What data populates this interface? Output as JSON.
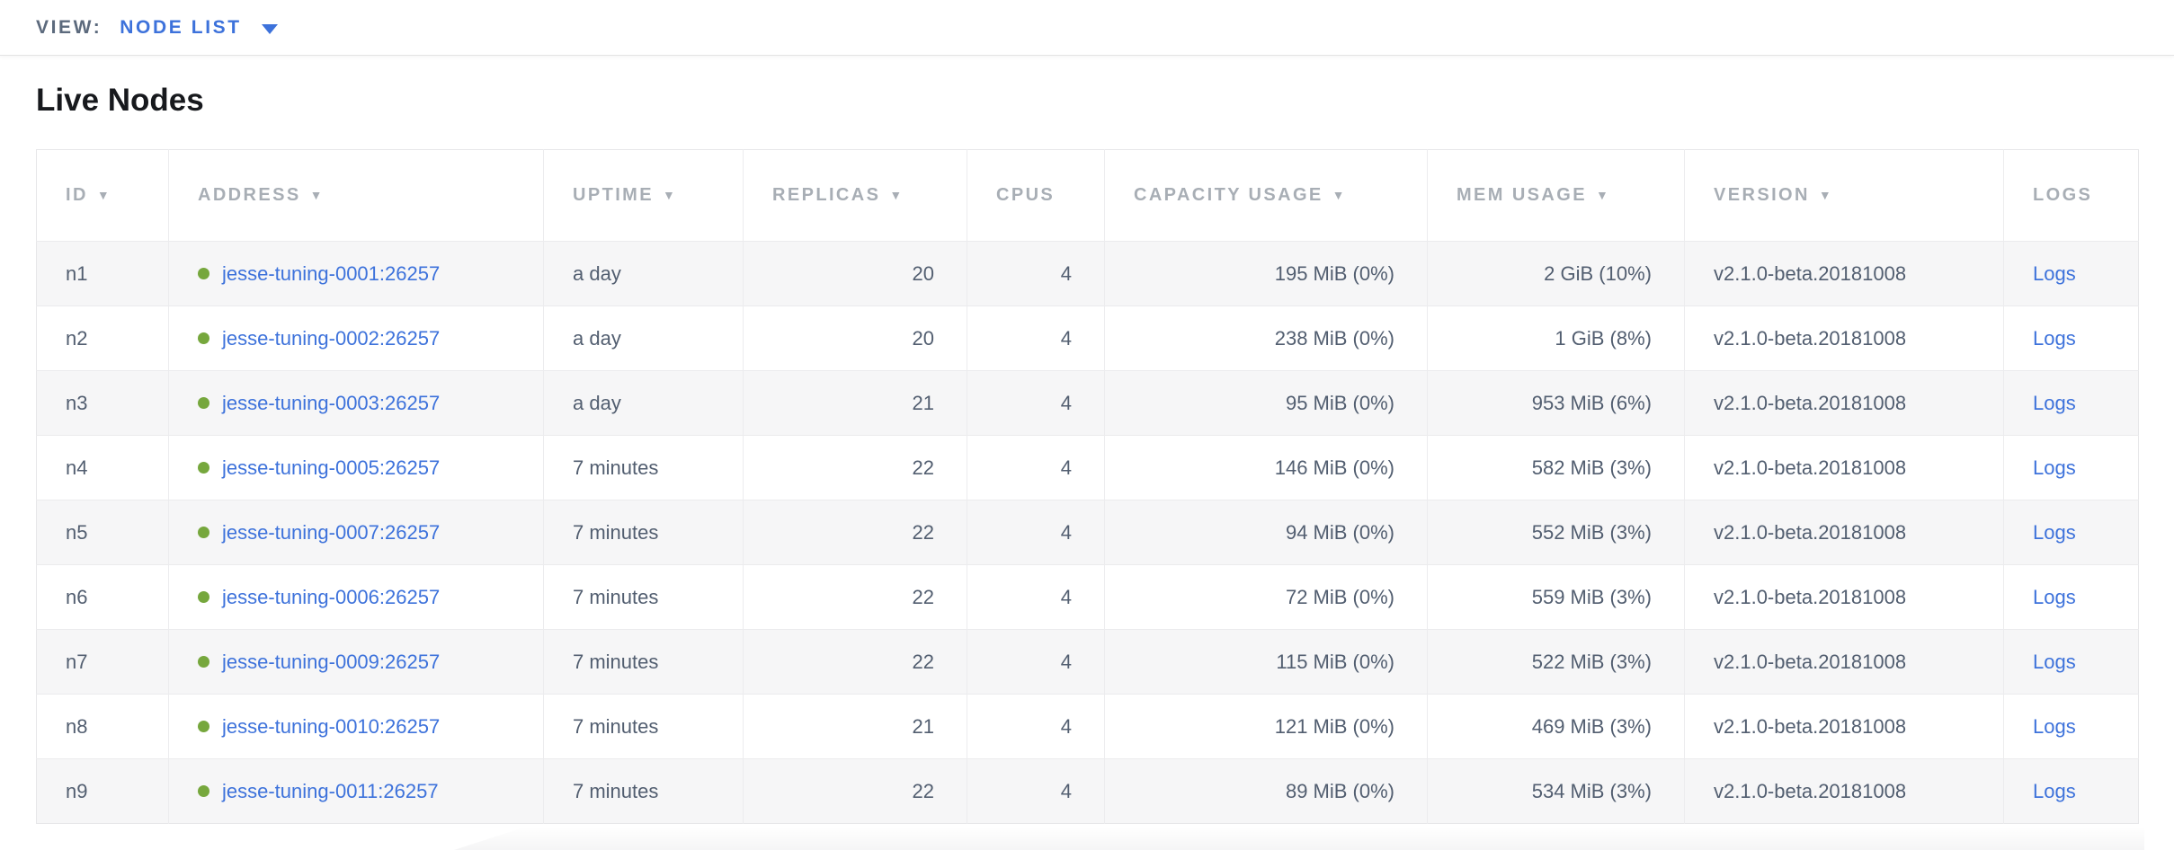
{
  "toolbar": {
    "view_label": "VIEW:",
    "view_value": "NODE LIST"
  },
  "page": {
    "title": "Live Nodes"
  },
  "colors": {
    "link": "#3d72db",
    "status_ok": "#76a73d",
    "header_text": "#a8aeb5",
    "body_text": "#525e70",
    "stripe": "#f6f6f7"
  },
  "table": {
    "sort_indicator": "▼",
    "columns": [
      {
        "key": "id",
        "label": "ID",
        "sorted": true
      },
      {
        "key": "address",
        "label": "ADDRESS",
        "sorted": true
      },
      {
        "key": "uptime",
        "label": "UPTIME",
        "sorted": true
      },
      {
        "key": "replicas",
        "label": "REPLICAS",
        "sorted": true
      },
      {
        "key": "cpus",
        "label": "CPUS",
        "sorted": false
      },
      {
        "key": "capacity",
        "label": "CAPACITY USAGE",
        "sorted": true
      },
      {
        "key": "mem",
        "label": "MEM USAGE",
        "sorted": true
      },
      {
        "key": "version",
        "label": "VERSION",
        "sorted": true
      },
      {
        "key": "logs",
        "label": "LOGS",
        "sorted": false
      }
    ],
    "rows": [
      {
        "id": "n1",
        "address": "jesse-tuning-0001:26257",
        "uptime": "a day",
        "replicas": "20",
        "cpus": "4",
        "capacity": "195 MiB (0%)",
        "mem": "2 GiB (10%)",
        "version": "v2.1.0-beta.20181008",
        "logs": "Logs"
      },
      {
        "id": "n2",
        "address": "jesse-tuning-0002:26257",
        "uptime": "a day",
        "replicas": "20",
        "cpus": "4",
        "capacity": "238 MiB (0%)",
        "mem": "1 GiB (8%)",
        "version": "v2.1.0-beta.20181008",
        "logs": "Logs"
      },
      {
        "id": "n3",
        "address": "jesse-tuning-0003:26257",
        "uptime": "a day",
        "replicas": "21",
        "cpus": "4",
        "capacity": "95 MiB (0%)",
        "mem": "953 MiB (6%)",
        "version": "v2.1.0-beta.20181008",
        "logs": "Logs"
      },
      {
        "id": "n4",
        "address": "jesse-tuning-0005:26257",
        "uptime": "7 minutes",
        "replicas": "22",
        "cpus": "4",
        "capacity": "146 MiB (0%)",
        "mem": "582 MiB (3%)",
        "version": "v2.1.0-beta.20181008",
        "logs": "Logs"
      },
      {
        "id": "n5",
        "address": "jesse-tuning-0007:26257",
        "uptime": "7 minutes",
        "replicas": "22",
        "cpus": "4",
        "capacity": "94 MiB (0%)",
        "mem": "552 MiB (3%)",
        "version": "v2.1.0-beta.20181008",
        "logs": "Logs"
      },
      {
        "id": "n6",
        "address": "jesse-tuning-0006:26257",
        "uptime": "7 minutes",
        "replicas": "22",
        "cpus": "4",
        "capacity": "72 MiB (0%)",
        "mem": "559 MiB (3%)",
        "version": "v2.1.0-beta.20181008",
        "logs": "Logs"
      },
      {
        "id": "n7",
        "address": "jesse-tuning-0009:26257",
        "uptime": "7 minutes",
        "replicas": "22",
        "cpus": "4",
        "capacity": "115 MiB (0%)",
        "mem": "522 MiB (3%)",
        "version": "v2.1.0-beta.20181008",
        "logs": "Logs"
      },
      {
        "id": "n8",
        "address": "jesse-tuning-0010:26257",
        "uptime": "7 minutes",
        "replicas": "21",
        "cpus": "4",
        "capacity": "121 MiB (0%)",
        "mem": "469 MiB (3%)",
        "version": "v2.1.0-beta.20181008",
        "logs": "Logs"
      },
      {
        "id": "n9",
        "address": "jesse-tuning-0011:26257",
        "uptime": "7 minutes",
        "replicas": "22",
        "cpus": "4",
        "capacity": "89 MiB (0%)",
        "mem": "534 MiB (3%)",
        "version": "v2.1.0-beta.20181008",
        "logs": "Logs"
      }
    ]
  }
}
